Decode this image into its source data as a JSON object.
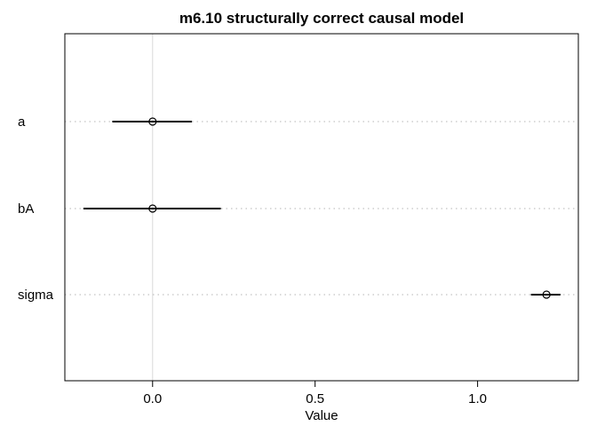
{
  "chart_data": {
    "type": "dotplot",
    "title": "m6.10 structurally correct causal model",
    "xlabel": "Value",
    "xlim": [
      -0.27,
      1.31
    ],
    "xticks": [
      0.0,
      0.5,
      1.0
    ],
    "xtick_labels": [
      "0.0",
      "0.5",
      "1.0"
    ],
    "reference_line": 0,
    "rows": [
      {
        "label": "a",
        "mean": 0.0,
        "lower": -0.124,
        "upper": 0.121
      },
      {
        "label": "bA",
        "mean": 0.0,
        "lower": -0.213,
        "upper": 0.21
      },
      {
        "label": "sigma",
        "mean": 1.212,
        "lower": 1.164,
        "upper": 1.255
      }
    ]
  }
}
